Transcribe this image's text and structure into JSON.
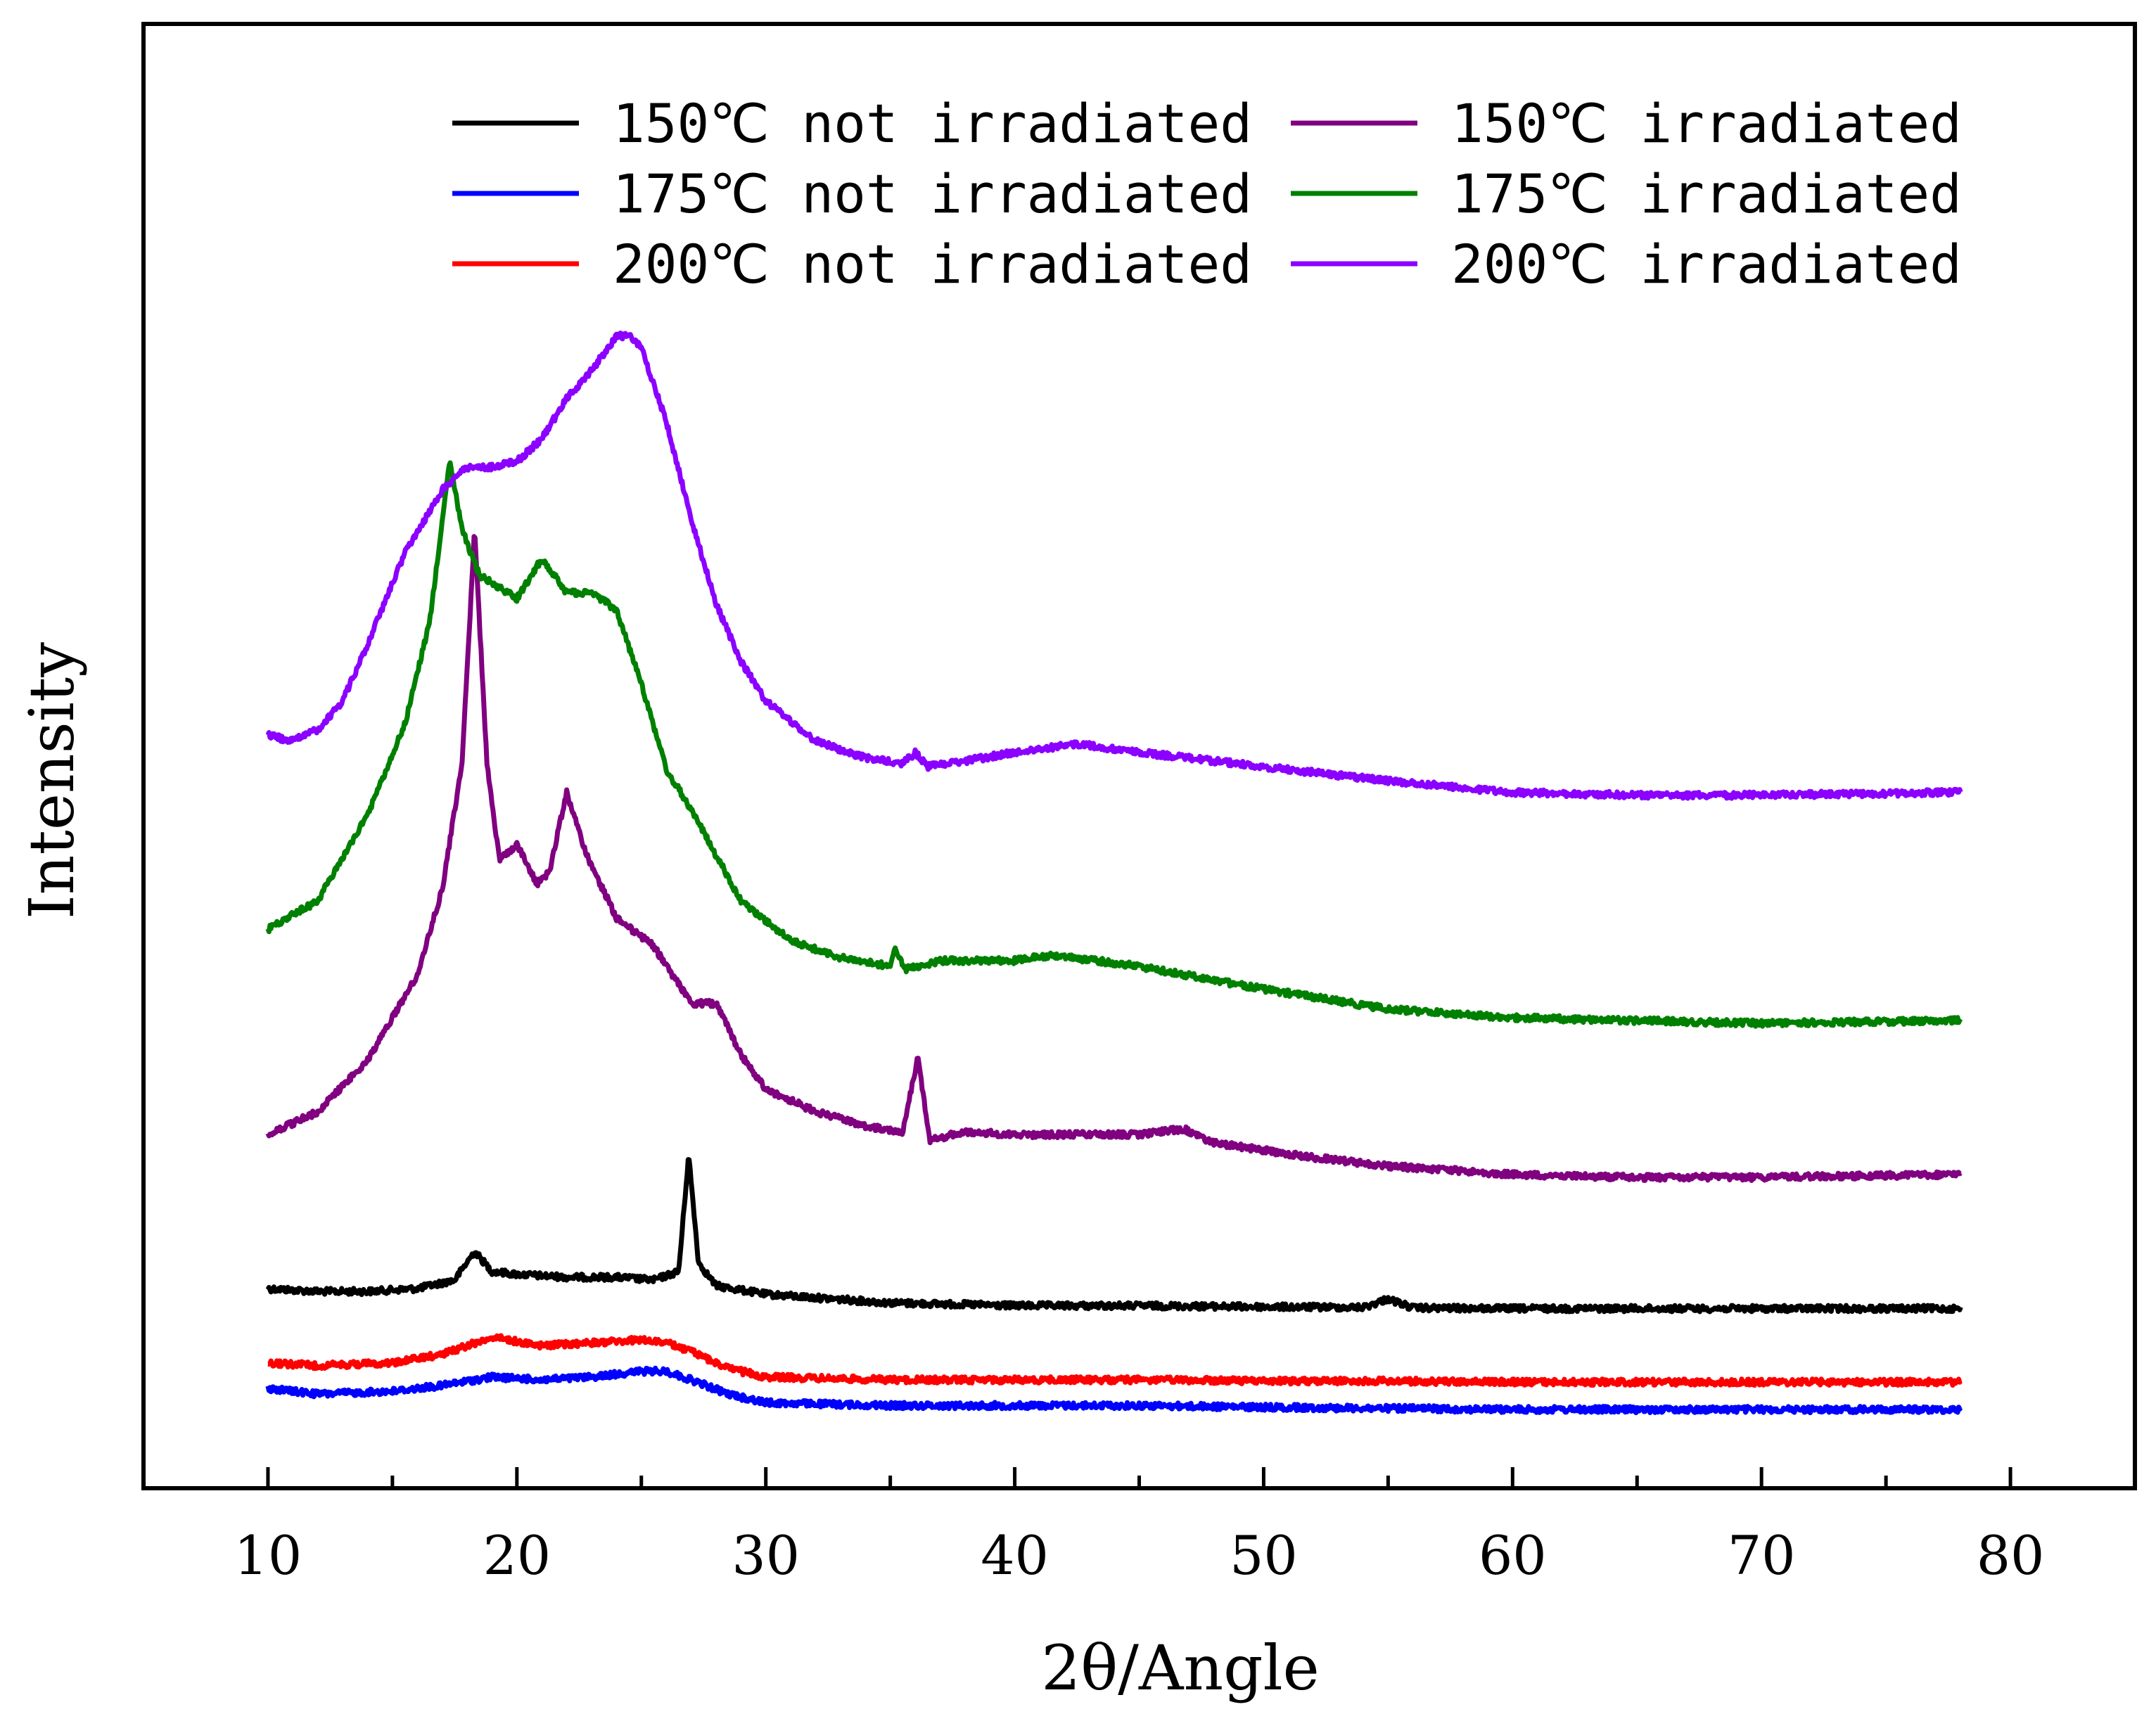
{
  "chart_data": {
    "type": "line",
    "title": "",
    "xlabel": "2θ/Angle",
    "ylabel": "Intensity",
    "xlim": [
      5,
      85
    ],
    "x_ticks": [
      10,
      20,
      30,
      40,
      50,
      60,
      70,
      80
    ],
    "y_ticks_shown": false,
    "grid": false,
    "legend_position": "top",
    "series": [
      {
        "name": "150℃ not irradiated",
        "color": "#000000",
        "x": [
          10,
          12,
          14,
          16,
          17.5,
          18.3,
          19,
          20,
          22,
          24,
          25.5,
          26.5,
          26.9,
          27.3,
          28,
          30,
          35,
          40,
          45,
          50,
          54,
          55,
          56,
          60,
          70,
          78
        ],
        "y": [
          7.3,
          7.25,
          7.25,
          7.3,
          7.45,
          7.95,
          7.6,
          7.55,
          7.5,
          7.5,
          7.45,
          7.6,
          9.65,
          7.75,
          7.35,
          7.2,
          7.05,
          7.0,
          7.0,
          6.98,
          6.97,
          7.12,
          6.96,
          6.95,
          6.95,
          6.95
        ]
      },
      {
        "name": "175℃ not irradiated",
        "color": "#0000ff",
        "x": [
          10,
          12,
          15,
          17,
          19,
          21,
          23,
          25,
          26,
          27,
          28.5,
          30,
          35,
          40,
          45,
          50,
          55,
          60,
          70,
          78
        ],
        "y": [
          5.55,
          5.45,
          5.5,
          5.6,
          5.75,
          5.7,
          5.75,
          5.85,
          5.85,
          5.7,
          5.45,
          5.3,
          5.25,
          5.25,
          5.25,
          5.22,
          5.2,
          5.18,
          5.18,
          5.18
        ]
      },
      {
        "name": "200℃ not irradiated",
        "color": "#ff0000",
        "x": [
          10,
          12,
          15,
          17,
          19,
          21,
          23,
          25,
          26,
          27,
          28.5,
          30,
          35,
          40,
          45,
          50,
          55,
          60,
          70,
          78
        ],
        "y": [
          6.0,
          5.95,
          6.0,
          6.15,
          6.45,
          6.3,
          6.35,
          6.4,
          6.35,
          6.2,
          5.9,
          5.75,
          5.7,
          5.7,
          5.7,
          5.68,
          5.68,
          5.66,
          5.66,
          5.66
        ]
      },
      {
        "name": "150℃ irradiated",
        "color": "#800080",
        "x": [
          10,
          12,
          14,
          16,
          17,
          17.8,
          18.3,
          18.8,
          19.3,
          20,
          20.8,
          21.3,
          22,
          22.8,
          24,
          25.5,
          27,
          28,
          29,
          30,
          32,
          34,
          35.5,
          36.1,
          36.6,
          38,
          40,
          45,
          46.8,
          48,
          52,
          55,
          60,
          65,
          70,
          78
        ],
        "y": [
          10.0,
          10.4,
          11.3,
          12.8,
          14.3,
          16.5,
          20.6,
          16.5,
          14.8,
          15.1,
          14.4,
          14.6,
          16.0,
          14.9,
          13.8,
          13.3,
          12.3,
          12.3,
          11.4,
          10.8,
          10.4,
          10.15,
          10.05,
          11.35,
          9.9,
          10.05,
          10.0,
          10.0,
          10.1,
          9.85,
          9.6,
          9.45,
          9.3,
          9.25,
          9.25,
          9.3
        ]
      },
      {
        "name": "175℃ irradiated",
        "color": "#008000",
        "x": [
          10,
          12,
          14,
          15.5,
          16.5,
          17.3,
          17.8,
          18.5,
          20,
          21,
          22,
          23,
          24,
          25,
          26,
          27,
          28,
          29,
          31,
          33,
          35,
          35.2,
          35.6,
          37,
          40,
          41.5,
          45,
          50,
          55,
          60,
          70,
          78
        ],
        "y": [
          13.6,
          14.1,
          15.6,
          17.2,
          19.0,
          21.8,
          20.6,
          19.8,
          19.4,
          20.1,
          19.5,
          19.5,
          19.2,
          17.9,
          16.4,
          15.7,
          14.9,
          14.1,
          13.4,
          13.1,
          12.95,
          13.3,
          12.9,
          13.05,
          13.05,
          13.15,
          12.95,
          12.55,
          12.2,
          12.05,
          11.95,
          12.0
        ]
      },
      {
        "name": "200℃ irradiated",
        "color": "#8b00ff",
        "x": [
          10,
          11,
          12,
          13,
          14,
          15.5,
          17,
          18,
          19,
          20,
          21,
          22,
          23,
          24,
          24.5,
          25,
          26,
          27,
          28,
          29,
          30,
          32,
          34,
          35.5,
          36,
          36.5,
          38,
          40,
          42.5,
          45,
          48,
          50,
          55,
          60,
          65,
          70,
          78
        ],
        "y": [
          17.0,
          16.9,
          17.1,
          17.6,
          18.6,
          20.2,
          21.3,
          21.7,
          21.7,
          21.8,
          22.2,
          22.9,
          23.4,
          24.0,
          24.0,
          23.8,
          22.5,
          20.8,
          19.3,
          18.3,
          17.6,
          16.9,
          16.6,
          16.5,
          16.7,
          16.45,
          16.55,
          16.7,
          16.85,
          16.7,
          16.55,
          16.45,
          16.2,
          16.0,
          15.95,
          15.95,
          16.0
        ]
      }
    ]
  }
}
